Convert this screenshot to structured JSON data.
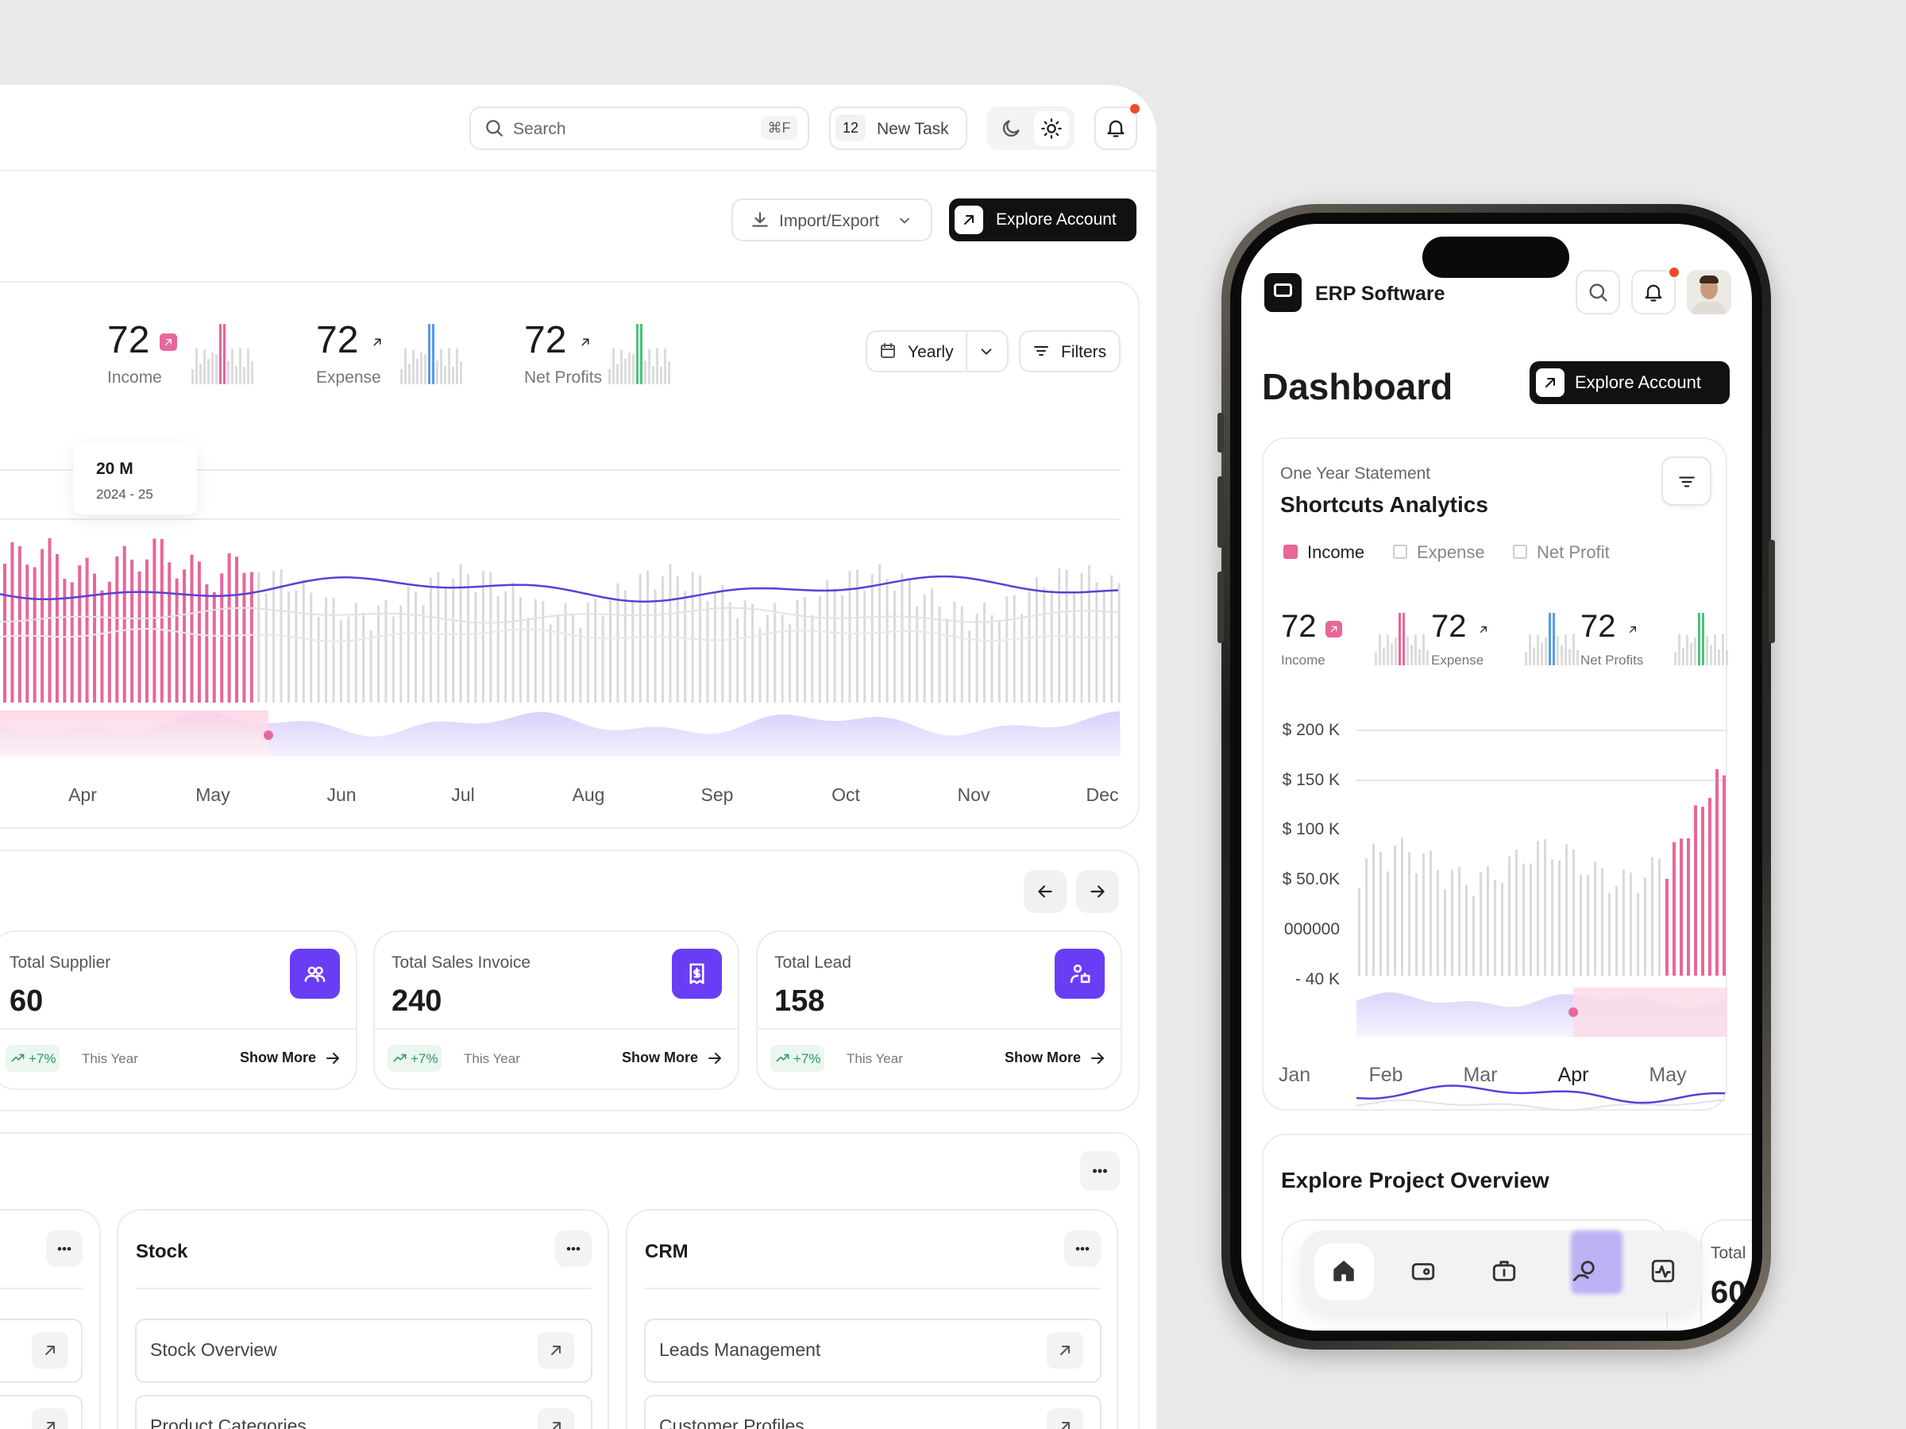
{
  "header": {
    "search": "Search",
    "shortcut": "⌘F",
    "task_count": "12",
    "new_task": "New Task"
  },
  "toolbar": {
    "import_export": "Import/Export",
    "explore_account": "Explore Account"
  },
  "stats": [
    {
      "value": "72",
      "label": "Income"
    },
    {
      "value": "72",
      "label": "Expense"
    },
    {
      "value": "72",
      "label": "Net Profits"
    }
  ],
  "filters": {
    "period": "Yearly",
    "filters": "Filters"
  },
  "tooltip": {
    "value": "20 M",
    "period": "2024 - 25"
  },
  "months": [
    "Apr",
    "May",
    "Jun",
    "Jul",
    "Aug",
    "Sep",
    "Oct",
    "Nov",
    "Dec"
  ],
  "stat_cards": [
    {
      "title": "Total Supplier",
      "value": "60",
      "change": "+7%",
      "period": "This Year",
      "action": "Show More"
    },
    {
      "title": "Total Sales Invoice",
      "value": "240",
      "change": "+7%",
      "period": "This Year",
      "action": "Show More"
    },
    {
      "title": "Total Lead",
      "value": "158",
      "change": "+7%",
      "period": "This Year",
      "action": "Show More"
    }
  ],
  "modules": [
    {
      "title": "Stock",
      "items": [
        "Stock Overview",
        "Product Categories"
      ]
    },
    {
      "title": "CRM",
      "items": [
        "Leads Management",
        "Customer Profiles"
      ]
    }
  ],
  "phone": {
    "app_name": "ERP Software",
    "title": "Dashboard",
    "explore_account": "Explore Account",
    "card_subtitle": "One Year Statement",
    "card_title": "Shortcuts Analytics",
    "legend": [
      "Income",
      "Expense",
      "Net Profit"
    ],
    "stats": [
      {
        "value": "72",
        "label": "Income"
      },
      {
        "value": "72",
        "label": "Expense"
      },
      {
        "value": "72",
        "label": "Net Profits"
      }
    ],
    "y_labels": [
      "$ 200 K",
      "$ 150 K",
      "$ 100 K",
      "$ 50.0K",
      "000000",
      "- 40 K"
    ],
    "months": [
      "Jan",
      "Feb",
      "Mar",
      "Apr",
      "May"
    ],
    "overview_title": "Explore Project Overview",
    "partial_card": {
      "title": "Total",
      "value": "60"
    }
  }
}
